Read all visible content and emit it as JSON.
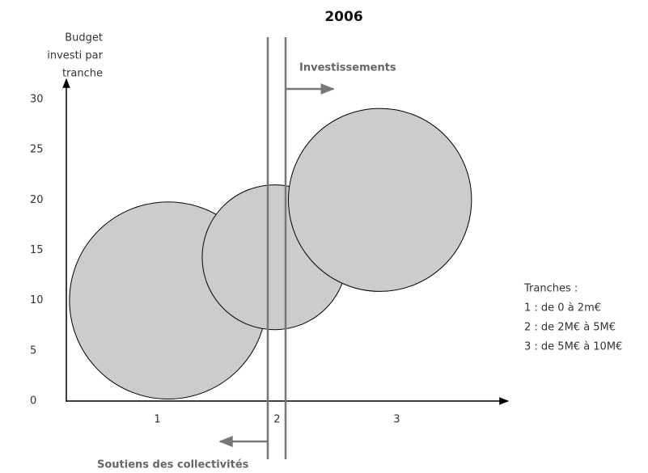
{
  "chart_data": {
    "type": "bubble",
    "title": "2006",
    "ylabel": [
      "Budget",
      "investi par",
      "tranche"
    ],
    "x": [
      1.09,
      1.98,
      2.86
    ],
    "values": [
      10,
      14.3,
      20
    ],
    "sizes": [
      9.8,
      7.2,
      9.1
    ],
    "color": "#cccccc",
    "xlim": [
      0.24,
      3.93
    ],
    "xticks": [
      1,
      2,
      3
    ],
    "ylim": [
      0,
      32
    ],
    "yticks": [
      0,
      5,
      10,
      15,
      20,
      25,
      30
    ],
    "annotations": [
      "Investissements",
      "Soutiens des collectivités"
    ],
    "legend": {
      "title": "Tranches :",
      "items": [
        "1 : de 0 à 2m€",
        "2 : de 2M€ à 5M€",
        "3 : de 5M€ à 10M€"
      ]
    }
  }
}
